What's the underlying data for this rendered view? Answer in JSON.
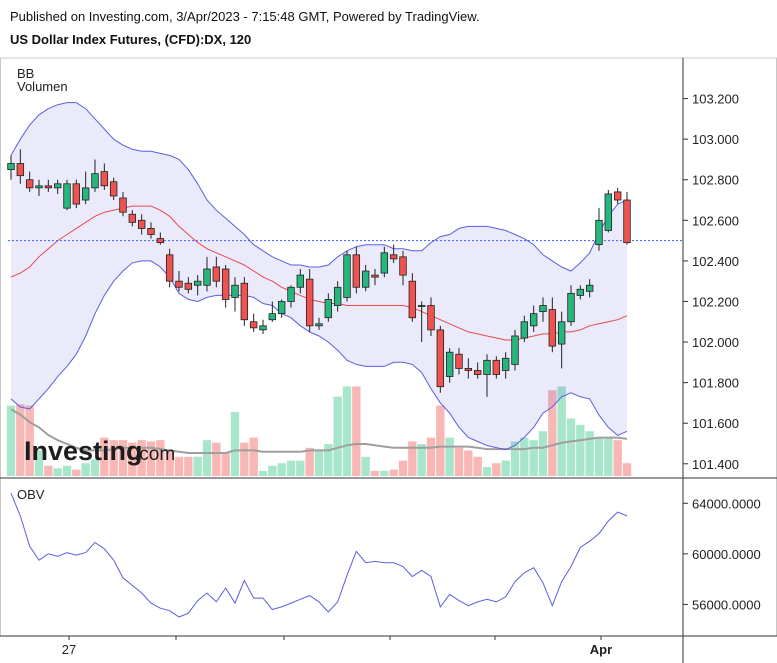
{
  "header": {
    "published": "Published on Investing.com, 3/Apr/2023 - 7:15:48 GMT, Powered by TradingView.",
    "instrument": "US Dollar Index Futures, (CFD):DX, 120"
  },
  "indicators": {
    "bb": "BB",
    "volume": "Volumen",
    "obv": "OBV"
  },
  "logo": {
    "name": "Investing",
    "domain": ".com"
  },
  "colors": {
    "up": "#26b67e",
    "down": "#ef5350",
    "bb_band": "#5b5fe0",
    "bb_basis": "#e84a4a",
    "obv": "#5b5fe0",
    "current_price": "#3d5afe"
  },
  "chart_data": [
    {
      "type": "candlestick",
      "title": "US Dollar Index Futures, (CFD):DX, 120",
      "ylim": [
        101.33,
        103.4
      ],
      "yticks": [
        "103.200",
        "103.000",
        "102.800",
        "102.600",
        "102.400",
        "102.200",
        "102.000",
        "101.800",
        "101.600",
        "101.400"
      ],
      "ytick_values": [
        103.2,
        103.0,
        102.8,
        102.6,
        102.4,
        102.2,
        102.0,
        101.8,
        101.6,
        101.4
      ],
      "xticks": [
        "27",
        "Apr"
      ],
      "current_price": 102.5,
      "ohlc": [
        [
          102.85,
          102.92,
          102.8,
          102.88
        ],
        [
          102.88,
          102.95,
          102.78,
          102.82
        ],
        [
          102.8,
          102.84,
          102.74,
          102.76
        ],
        [
          102.76,
          102.8,
          102.72,
          102.77
        ],
        [
          102.77,
          102.8,
          102.74,
          102.76
        ],
        [
          102.76,
          102.8,
          102.73,
          102.78
        ],
        [
          102.66,
          102.8,
          102.65,
          102.78
        ],
        [
          102.78,
          102.8,
          102.66,
          102.68
        ],
        [
          102.7,
          102.84,
          102.68,
          102.76
        ],
        [
          102.76,
          102.9,
          102.74,
          102.83
        ],
        [
          102.84,
          102.88,
          102.75,
          102.77
        ],
        [
          102.79,
          102.81,
          102.7,
          102.72
        ],
        [
          102.71,
          102.74,
          102.62,
          102.64
        ],
        [
          102.63,
          102.65,
          102.57,
          102.59
        ],
        [
          102.6,
          102.63,
          102.53,
          102.56
        ],
        [
          102.56,
          102.59,
          102.51,
          102.53
        ],
        [
          102.51,
          102.54,
          102.48,
          102.49
        ],
        [
          102.43,
          102.46,
          102.27,
          102.3
        ],
        [
          102.3,
          102.35,
          102.25,
          102.27
        ],
        [
          102.29,
          102.32,
          102.24,
          102.26
        ],
        [
          102.28,
          102.33,
          102.23,
          102.3
        ],
        [
          102.28,
          102.42,
          102.25,
          102.36
        ],
        [
          102.37,
          102.42,
          102.27,
          102.3
        ],
        [
          102.36,
          102.38,
          102.17,
          102.21
        ],
        [
          102.22,
          102.32,
          102.15,
          102.28
        ],
        [
          102.29,
          102.32,
          102.08,
          102.11
        ],
        [
          102.1,
          102.14,
          102.05,
          102.07
        ],
        [
          102.06,
          102.11,
          102.04,
          102.08
        ],
        [
          102.11,
          102.2,
          102.1,
          102.14
        ],
        [
          102.14,
          102.21,
          102.12,
          102.2
        ],
        [
          102.2,
          102.28,
          102.17,
          102.27
        ],
        [
          102.27,
          102.36,
          102.24,
          102.33
        ],
        [
          102.31,
          102.36,
          102.05,
          102.08
        ],
        [
          102.08,
          102.12,
          102.06,
          102.09
        ],
        [
          102.12,
          102.24,
          102.1,
          102.21
        ],
        [
          102.18,
          102.3,
          102.15,
          102.27
        ],
        [
          102.22,
          102.45,
          102.2,
          102.43
        ],
        [
          102.43,
          102.47,
          102.24,
          102.27
        ],
        [
          102.27,
          102.38,
          102.25,
          102.35
        ],
        [
          102.33,
          102.36,
          102.28,
          102.32
        ],
        [
          102.34,
          102.47,
          102.32,
          102.44
        ],
        [
          102.43,
          102.48,
          102.39,
          102.41
        ],
        [
          102.42,
          102.45,
          102.28,
          102.33
        ],
        [
          102.3,
          102.34,
          102.1,
          102.12
        ],
        [
          102.18,
          102.2,
          102.0,
          102.18
        ],
        [
          102.18,
          102.22,
          102.03,
          102.06
        ],
        [
          102.06,
          102.08,
          101.75,
          101.78
        ],
        [
          101.83,
          101.97,
          101.8,
          101.95
        ],
        [
          101.94,
          101.97,
          101.84,
          101.87
        ],
        [
          101.87,
          101.92,
          101.82,
          101.86
        ],
        [
          101.86,
          101.9,
          101.82,
          101.84
        ],
        [
          101.84,
          101.94,
          101.73,
          101.91
        ],
        [
          101.91,
          101.93,
          101.82,
          101.84
        ],
        [
          101.86,
          101.95,
          101.82,
          101.92
        ],
        [
          101.89,
          102.06,
          101.86,
          102.03
        ],
        [
          102.02,
          102.13,
          102.0,
          102.1
        ],
        [
          102.08,
          102.18,
          102.05,
          102.14
        ],
        [
          102.15,
          102.22,
          102.1,
          102.18
        ],
        [
          102.16,
          102.22,
          101.95,
          101.98
        ],
        [
          101.99,
          102.15,
          101.87,
          102.1
        ],
        [
          102.1,
          102.28,
          102.08,
          102.24
        ],
        [
          102.23,
          102.28,
          102.21,
          102.26
        ],
        [
          102.25,
          102.31,
          102.22,
          102.28
        ],
        [
          102.48,
          102.66,
          102.45,
          102.6
        ],
        [
          102.55,
          102.75,
          102.54,
          102.73
        ],
        [
          102.74,
          102.76,
          102.68,
          102.7
        ],
        [
          102.7,
          102.74,
          102.48,
          102.49
        ]
      ],
      "bb_upper": [
        102.92,
        103.0,
        103.07,
        103.12,
        103.15,
        103.17,
        103.18,
        103.18,
        103.15,
        103.1,
        103.05,
        103.0,
        102.97,
        102.95,
        102.94,
        102.94,
        102.93,
        102.92,
        102.9,
        102.85,
        102.78,
        102.7,
        102.65,
        102.61,
        102.57,
        102.53,
        102.48,
        102.45,
        102.42,
        102.4,
        102.38,
        102.38,
        102.37,
        102.37,
        102.38,
        102.42,
        102.45,
        102.47,
        102.48,
        102.48,
        102.48,
        102.46,
        102.46,
        102.45,
        102.45,
        102.49,
        102.52,
        102.53,
        102.56,
        102.57,
        102.57,
        102.57,
        102.56,
        102.55,
        102.53,
        102.51,
        102.48,
        102.43,
        102.4,
        102.37,
        102.35,
        102.39,
        102.44,
        102.54,
        102.62,
        102.68,
        102.7
      ],
      "bb_basis": [
        102.32,
        102.34,
        102.37,
        102.42,
        102.46,
        102.5,
        102.53,
        102.56,
        102.59,
        102.62,
        102.64,
        102.65,
        102.66,
        102.67,
        102.67,
        102.67,
        102.65,
        102.62,
        102.57,
        102.53,
        102.49,
        102.46,
        102.44,
        102.42,
        102.4,
        102.38,
        102.35,
        102.32,
        102.3,
        102.27,
        102.25,
        102.23,
        102.21,
        102.2,
        102.19,
        102.19,
        102.18,
        102.18,
        102.18,
        102.18,
        102.18,
        102.18,
        102.18,
        102.17,
        102.15,
        102.13,
        102.11,
        102.09,
        102.07,
        102.05,
        102.04,
        102.03,
        102.02,
        102.01,
        102.01,
        102.02,
        102.03,
        102.04,
        102.04,
        102.05,
        102.05,
        102.06,
        102.08,
        102.09,
        102.1,
        102.11,
        102.13
      ],
      "bb_lower": [
        101.72,
        101.68,
        101.67,
        101.72,
        101.77,
        101.83,
        101.88,
        101.94,
        102.03,
        102.14,
        102.23,
        102.3,
        102.35,
        102.39,
        102.4,
        102.4,
        102.37,
        102.32,
        102.24,
        102.21,
        102.2,
        102.22,
        102.23,
        102.23,
        102.23,
        102.23,
        102.22,
        102.19,
        102.18,
        102.14,
        102.12,
        102.08,
        102.05,
        102.03,
        102.0,
        101.96,
        101.91,
        101.89,
        101.88,
        101.88,
        101.88,
        101.9,
        101.9,
        101.89,
        101.85,
        101.77,
        101.7,
        101.65,
        101.58,
        101.53,
        101.51,
        101.49,
        101.48,
        101.47,
        101.49,
        101.53,
        101.58,
        101.65,
        101.68,
        101.73,
        101.75,
        101.73,
        101.72,
        101.64,
        101.58,
        101.54,
        101.56
      ],
      "volume": [
        0.55,
        0.56,
        0.55,
        0.2,
        0.08,
        0.06,
        0.08,
        0.05,
        0.1,
        0.13,
        0.3,
        0.28,
        0.28,
        0.26,
        0.28,
        0.27,
        0.28,
        0.2,
        0.15,
        0.15,
        0.15,
        0.28,
        0.26,
        0.18,
        0.5,
        0.26,
        0.3,
        0.04,
        0.08,
        0.1,
        0.12,
        0.12,
        0.22,
        0.2,
        0.25,
        0.62,
        0.7,
        0.7,
        0.15,
        0.04,
        0.04,
        0.05,
        0.12,
        0.27,
        0.25,
        0.3,
        0.55,
        0.3,
        0.22,
        0.2,
        0.15,
        0.07,
        0.1,
        0.12,
        0.27,
        0.3,
        0.28,
        0.35,
        0.67,
        0.7,
        0.45,
        0.4,
        0.35,
        0.3,
        0.3,
        0.28,
        0.1
      ],
      "volume_ma": [
        0.52,
        0.48,
        0.42,
        0.38,
        0.32,
        0.28,
        0.25,
        0.22,
        0.2,
        0.2,
        0.2,
        0.21,
        0.22,
        0.22,
        0.22,
        0.22,
        0.21,
        0.2,
        0.19,
        0.18,
        0.18,
        0.18,
        0.18,
        0.18,
        0.2,
        0.2,
        0.2,
        0.19,
        0.19,
        0.19,
        0.19,
        0.19,
        0.2,
        0.2,
        0.2,
        0.22,
        0.24,
        0.25,
        0.25,
        0.24,
        0.23,
        0.22,
        0.22,
        0.22,
        0.22,
        0.22,
        0.23,
        0.23,
        0.23,
        0.23,
        0.22,
        0.21,
        0.21,
        0.21,
        0.21,
        0.21,
        0.22,
        0.22,
        0.24,
        0.26,
        0.27,
        0.28,
        0.29,
        0.3,
        0.3,
        0.3,
        0.29
      ]
    },
    {
      "type": "line",
      "title": "OBV",
      "ylim": [
        53500,
        66000
      ],
      "yticks": [
        "64000.0000",
        "60000.0000",
        "56000.0000"
      ],
      "ytick_values": [
        64000,
        60000,
        56000
      ],
      "series": [
        {
          "values": [
            64800,
            63000,
            60600,
            59500,
            60000,
            59800,
            60100,
            59900,
            60100,
            60900,
            60400,
            59500,
            58100,
            57500,
            56900,
            56100,
            55700,
            55500,
            55000,
            55300,
            56300,
            56900,
            56200,
            57300,
            56100,
            57900,
            56500,
            56500,
            55600,
            55800,
            56100,
            56400,
            56700,
            56200,
            55400,
            56200,
            58300,
            60200,
            59300,
            59400,
            59300,
            59300,
            59000,
            58200,
            58700,
            58200,
            55800,
            56800,
            56300,
            55900,
            56200,
            56400,
            56200,
            56600,
            57800,
            58500,
            58900,
            57700,
            55900,
            57800,
            59000,
            60500,
            61000,
            61600,
            62600,
            63300,
            63000
          ]
        }
      ]
    }
  ]
}
